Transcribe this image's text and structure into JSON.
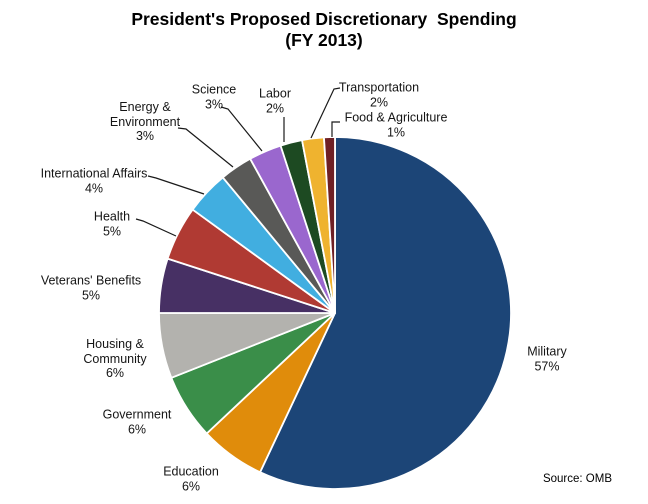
{
  "title": {
    "line1": "President's Proposed Discretionary  Spending",
    "line2": "(FY 2013)"
  },
  "source": "Source: OMB",
  "chart_data": {
    "type": "pie",
    "title": "President's Proposed Discretionary Spending (FY 2013)",
    "unit": "%",
    "start_angle_deg": 0,
    "direction": "clockwise",
    "legend": "none",
    "label_style": "outside-callouts",
    "source": "Source: OMB",
    "slices": [
      {
        "name": "Military",
        "value": 57,
        "pct_label": "57%",
        "color": "#1C4577",
        "label_lines": [
          "Military",
          "57%"
        ]
      },
      {
        "name": "Education",
        "value": 6,
        "pct_label": "6%",
        "color": "#E08C0B",
        "label_lines": [
          "Education",
          "6%"
        ]
      },
      {
        "name": "Government",
        "value": 6,
        "pct_label": "6%",
        "color": "#3A8E49",
        "label_lines": [
          "Government",
          "6%"
        ]
      },
      {
        "name": "Housing & Community",
        "value": 6,
        "pct_label": "6%",
        "color": "#B3B2AE",
        "label_lines": [
          "Housing &",
          "Community",
          "6%"
        ]
      },
      {
        "name": "Veterans' Benefits",
        "value": 5,
        "pct_label": "5%",
        "color": "#473064",
        "label_lines": [
          "Veterans' Benefits",
          "5%"
        ]
      },
      {
        "name": "Health",
        "value": 5,
        "pct_label": "5%",
        "color": "#B03A33",
        "label_lines": [
          "Health",
          "5%"
        ]
      },
      {
        "name": "International Affairs",
        "value": 4,
        "pct_label": "4%",
        "color": "#41AEE0",
        "label_lines": [
          "International Affairs",
          "4%"
        ]
      },
      {
        "name": "Energy & Environment",
        "value": 3,
        "pct_label": "3%",
        "color": "#595957",
        "label_lines": [
          "Energy &",
          "Environment",
          "3%"
        ]
      },
      {
        "name": "Science",
        "value": 3,
        "pct_label": "3%",
        "color": "#9A67CE",
        "label_lines": [
          "Science",
          "3%"
        ]
      },
      {
        "name": "Labor",
        "value": 2,
        "pct_label": "2%",
        "color": "#1D4A22",
        "label_lines": [
          "Labor",
          "2%"
        ]
      },
      {
        "name": "Transportation",
        "value": 2,
        "pct_label": "2%",
        "color": "#EFB32F",
        "label_lines": [
          "Transportation",
          "2%"
        ]
      },
      {
        "name": "Food & Agriculture",
        "value": 1,
        "pct_label": "1%",
        "color": "#6E2025",
        "label_lines": [
          "Food & Agriculture",
          "1%"
        ]
      }
    ]
  }
}
